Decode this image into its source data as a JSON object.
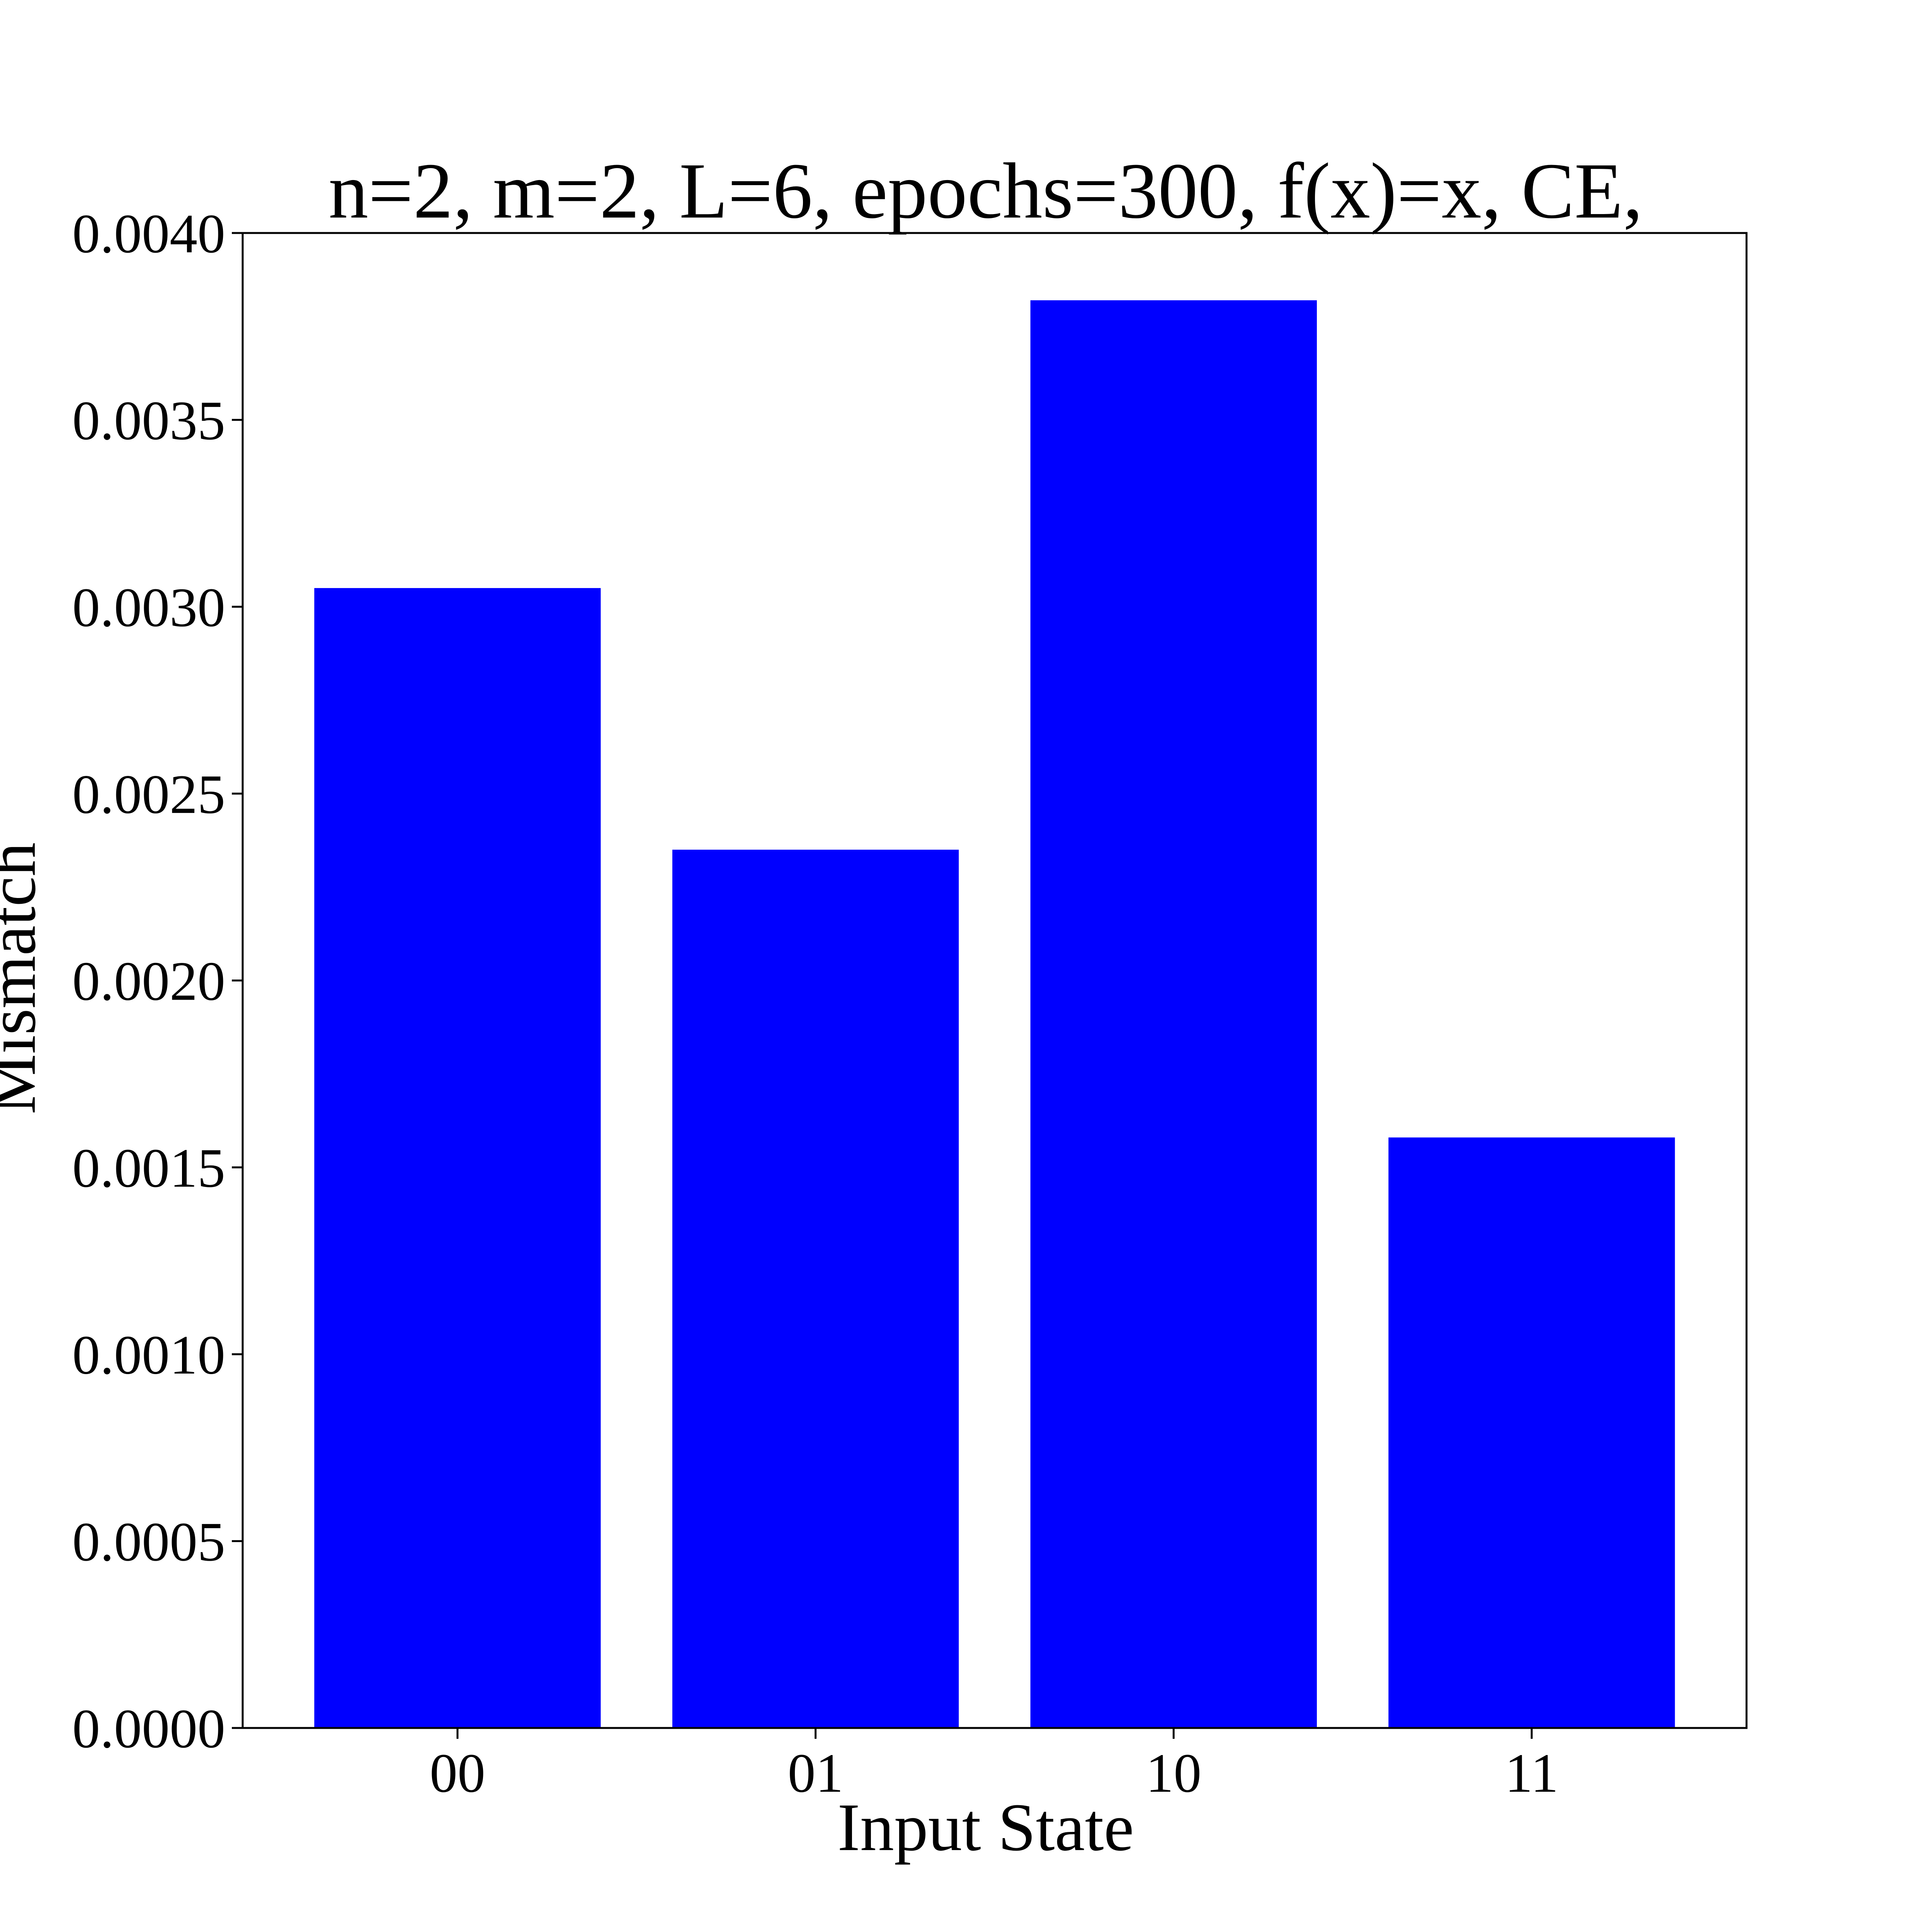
{
  "chart_data": {
    "type": "bar",
    "title": "n=2, m=2, L=6, epochs=300, f(x)=x, CE,",
    "xlabel": "Input State",
    "ylabel": "Mismatch",
    "categories": [
      "00",
      "01",
      "10",
      "11"
    ],
    "values": [
      0.00305,
      0.00235,
      0.00382,
      0.00158
    ],
    "ylim": [
      0,
      0.004
    ],
    "yticks": [
      0.0,
      0.0005,
      0.001,
      0.0015,
      0.002,
      0.0025,
      0.003,
      0.0035,
      0.004
    ],
    "ytick_labels": [
      "0.0000",
      "0.0005",
      "0.0010",
      "0.0015",
      "0.0020",
      "0.0025",
      "0.0030",
      "0.0035",
      "0.0040"
    ],
    "bar_color": "#0000ff",
    "grid": false,
    "legend": false
  }
}
